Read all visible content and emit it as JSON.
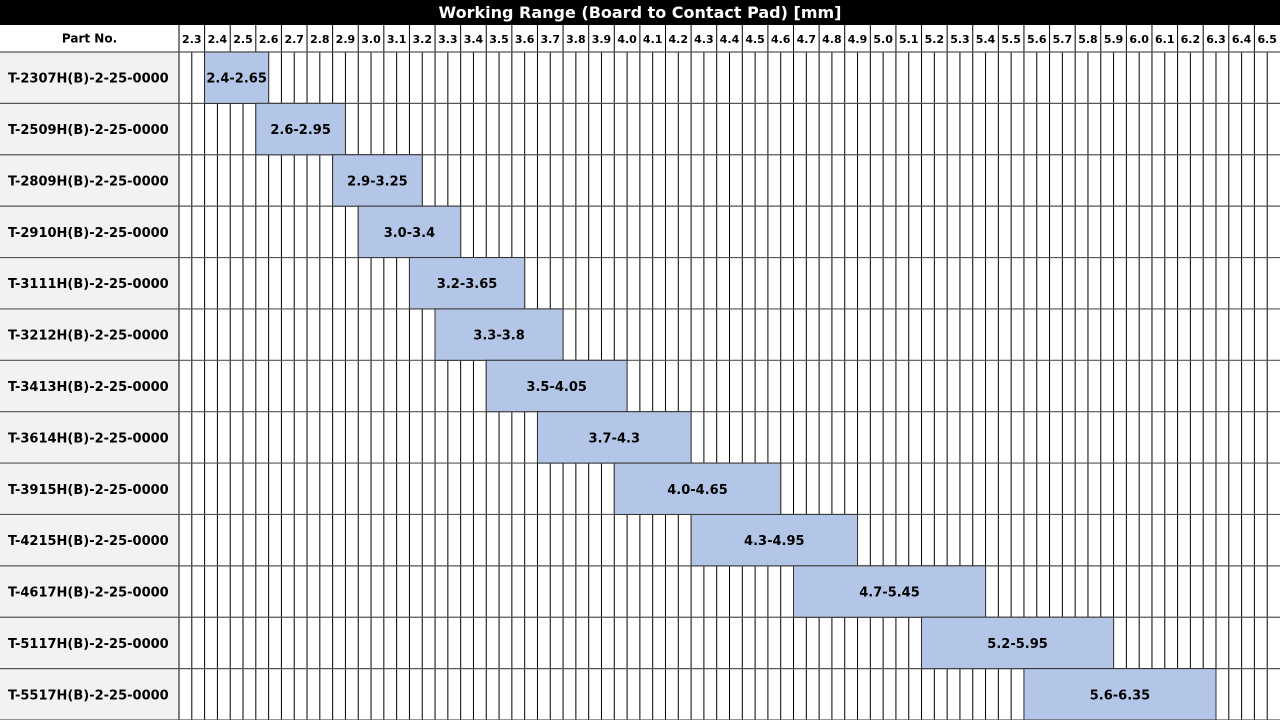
{
  "chart_data": {
    "type": "table",
    "title": "Working Range (Board to Contact Pad) [mm]",
    "row_header": "Part No.",
    "columns": [
      "2.3",
      "2.4",
      "2.5",
      "2.6",
      "2.7",
      "2.8",
      "2.9",
      "3.0",
      "3.1",
      "3.2",
      "3.3",
      "3.4",
      "3.5",
      "3.6",
      "3.7",
      "3.8",
      "3.9",
      "4.0",
      "4.1",
      "4.2",
      "4.3",
      "4.4",
      "4.5",
      "4.6",
      "4.7",
      "4.8",
      "4.9",
      "5.0",
      "5.1",
      "5.2",
      "5.3",
      "5.4",
      "5.5",
      "5.6",
      "5.7",
      "5.8",
      "5.9",
      "6.0",
      "6.1",
      "6.2",
      "6.3",
      "6.4",
      "6.5"
    ],
    "bar_color": "#b4c6e7",
    "rows": [
      {
        "part": "T-2307H(B)-2-25-0000",
        "start": 2.4,
        "end": 2.65,
        "label": "2.4-2.65"
      },
      {
        "part": "T-2509H(B)-2-25-0000",
        "start": 2.6,
        "end": 2.95,
        "label": "2.6-2.95"
      },
      {
        "part": "T-2809H(B)-2-25-0000",
        "start": 2.9,
        "end": 3.25,
        "label": "2.9-3.25"
      },
      {
        "part": "T-2910H(B)-2-25-0000",
        "start": 3.0,
        "end": 3.4,
        "label": "3.0-3.4"
      },
      {
        "part": "T-3111H(B)-2-25-0000",
        "start": 3.2,
        "end": 3.65,
        "label": "3.2-3.65"
      },
      {
        "part": "T-3212H(B)-2-25-0000",
        "start": 3.3,
        "end": 3.8,
        "label": "3.3-3.8"
      },
      {
        "part": "T-3413H(B)-2-25-0000",
        "start": 3.5,
        "end": 4.05,
        "label": "3.5-4.05"
      },
      {
        "part": "T-3614H(B)-2-25-0000",
        "start": 3.7,
        "end": 4.3,
        "label": "3.7-4.3"
      },
      {
        "part": "T-3915H(B)-2-25-0000",
        "start": 4.0,
        "end": 4.65,
        "label": "4.0-4.65"
      },
      {
        "part": "T-4215H(B)-2-25-0000",
        "start": 4.3,
        "end": 4.95,
        "label": "4.3-4.95"
      },
      {
        "part": "T-4617H(B)-2-25-0000",
        "start": 4.7,
        "end": 5.45,
        "label": "4.7-5.45"
      },
      {
        "part": "T-5117H(B)-2-25-0000",
        "start": 5.2,
        "end": 5.95,
        "label": "5.2-5.95"
      },
      {
        "part": "T-5517H(B)-2-25-0000",
        "start": 5.6,
        "end": 6.35,
        "label": "5.6-6.35"
      }
    ]
  }
}
